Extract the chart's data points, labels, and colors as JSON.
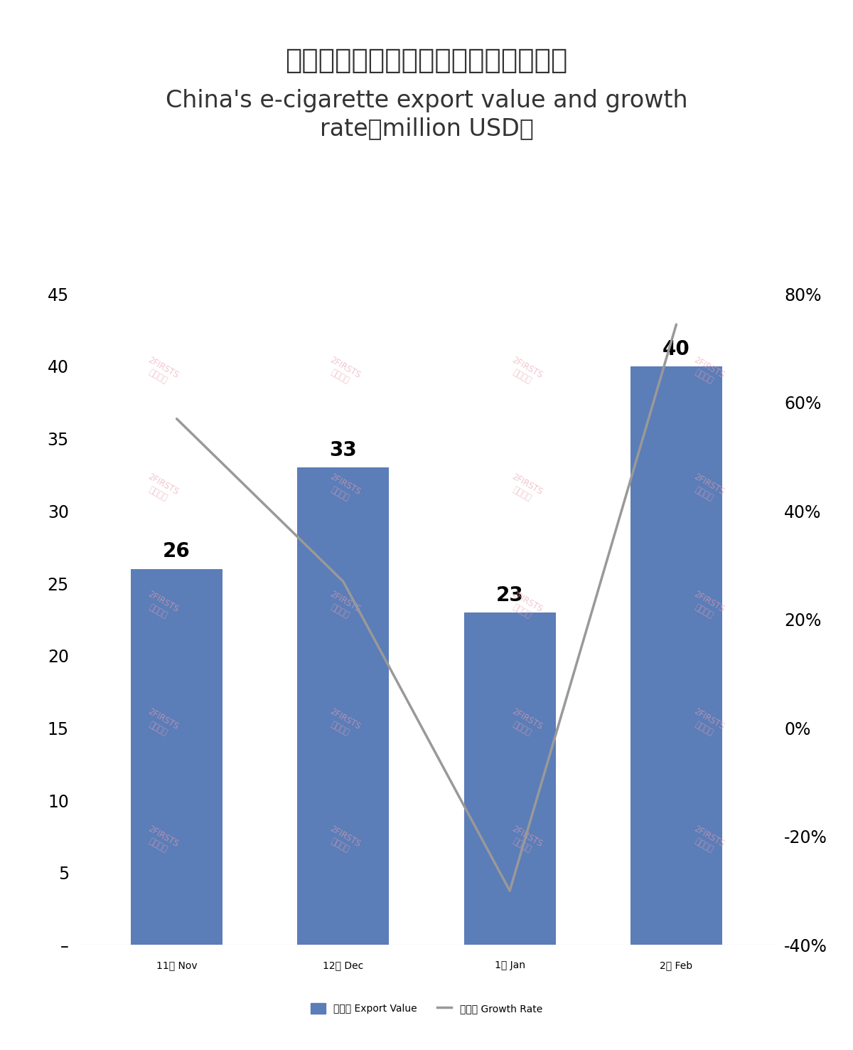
{
  "title_chinese": "中国电子烟出口额及增速（百万美元）",
  "title_english": "China's e-cigarette export value and growth\nrate（million USD）",
  "categories": [
    "11月 Nov",
    "12月 Dec",
    "1月 Jan",
    "2月 Feb"
  ],
  "bar_values": [
    26,
    33,
    23,
    40
  ],
  "growth_rates": [
    57,
    27,
    -30,
    74.39
  ],
  "bar_color": "#5B7DB8",
  "line_color": "#999999",
  "left_ylim": [
    0,
    45
  ],
  "left_yticks": [
    0,
    5,
    10,
    15,
    20,
    25,
    30,
    35,
    40,
    45
  ],
  "right_ylim": [
    -40,
    80
  ],
  "right_yticks": [
    -40,
    -20,
    0,
    20,
    40,
    60,
    80
  ],
  "right_yticklabels": [
    "-40%",
    "-20%",
    "0%",
    "20%",
    "40%",
    "60%",
    "80%"
  ],
  "left_ytick_labels": [
    "–",
    "5",
    "10",
    "15",
    "20",
    "25",
    "30",
    "35",
    "40",
    "45"
  ],
  "legend_bar_label": "出口额 Export Value",
  "legend_line_label": "增长率 Growth Rate",
  "background_color": "#FFFFFF",
  "watermark_line1": "2FIRSTS",
  "watermark_line2": "两个至上",
  "title_fontsize_cn": 28,
  "title_fontsize_en": 24,
  "bar_label_fontsize": 20,
  "tick_fontsize": 17,
  "legend_fontsize": 17
}
